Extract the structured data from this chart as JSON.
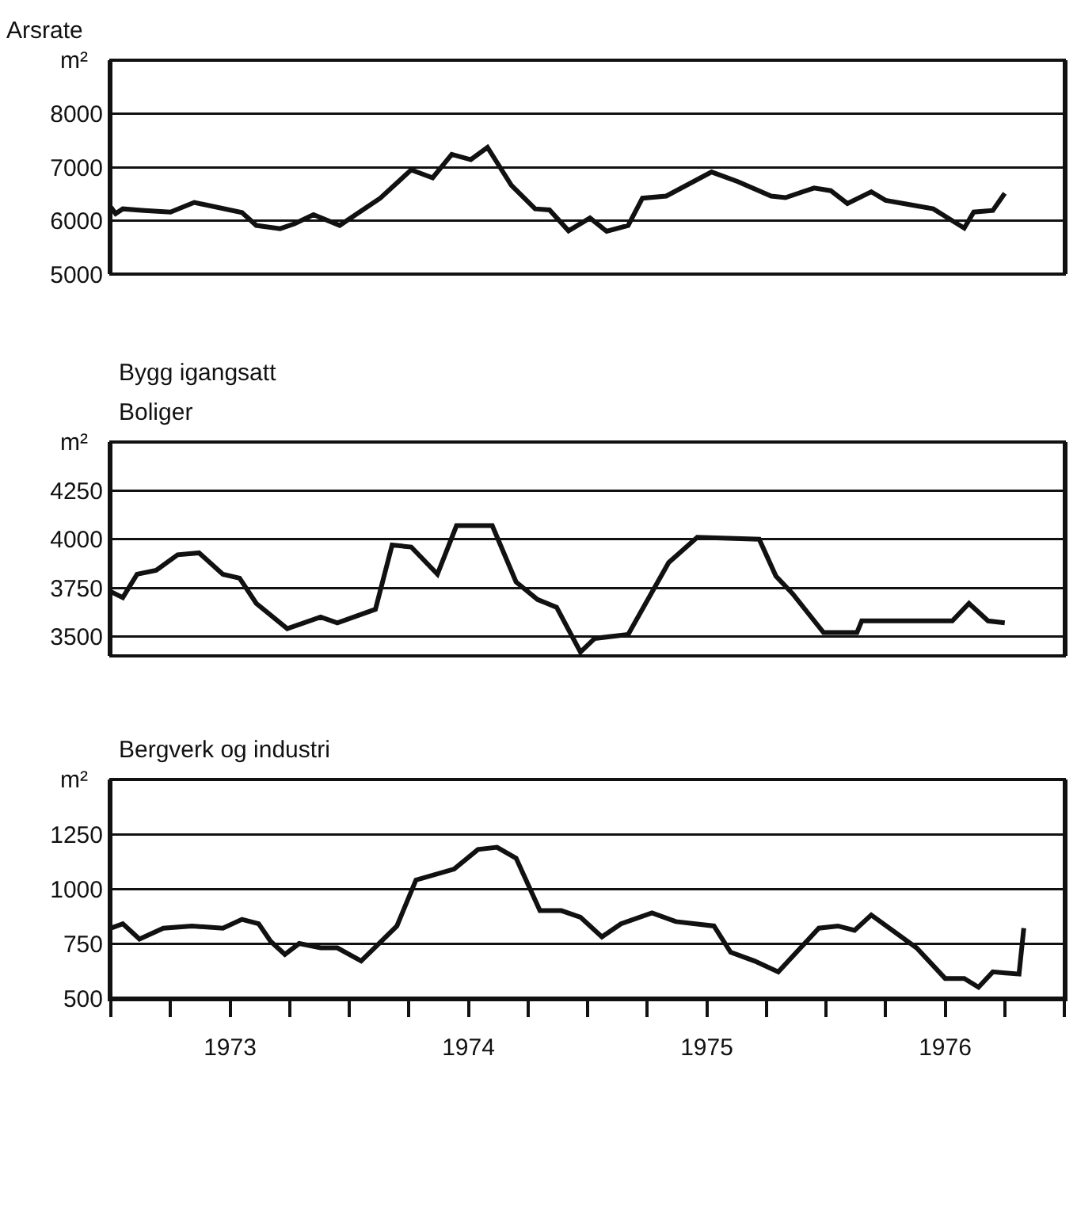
{
  "chart_data": [
    {
      "type": "line",
      "title": "Arsrate",
      "ylabel": "m²",
      "xlim": [
        1973,
        1977
      ],
      "ylim": [
        5000,
        9000
      ],
      "yticks": [
        5000,
        6000,
        7000,
        8000
      ],
      "grid": "y",
      "tick_labels": "y",
      "marker": "none",
      "line_style": "solid",
      "series": [
        {
          "color": "#111111",
          "x": [
            1973.0,
            1973.02,
            1973.05,
            1973.14,
            1973.25,
            1973.35,
            1973.55,
            1973.61,
            1973.71,
            1973.77,
            1973.85,
            1973.96,
            1974.13,
            1974.26,
            1974.35,
            1974.43,
            1974.51,
            1974.58,
            1974.68,
            1974.78,
            1974.84,
            1974.92,
            1975.01,
            1975.08,
            1975.17,
            1975.23,
            1975.33,
            1975.52,
            1975.63,
            1975.77,
            1975.83,
            1975.95,
            1976.02,
            1976.09,
            1976.19,
            1976.25,
            1976.35,
            1976.45,
            1976.58,
            1976.62,
            1976.7,
            1976.75
          ],
          "values": [
            6250,
            6130,
            6220,
            6190,
            6160,
            6340,
            6150,
            5910,
            5850,
            5940,
            6110,
            5910,
            6420,
            6950,
            6800,
            7240,
            7140,
            7370,
            6660,
            6220,
            6200,
            5810,
            6050,
            5800,
            5910,
            6420,
            6460,
            6910,
            6730,
            6460,
            6430,
            6610,
            6560,
            6320,
            6540,
            6380,
            6300,
            6220,
            5860,
            6160,
            6190,
            6510
          ]
        }
      ]
    },
    {
      "type": "line",
      "title": "Bygg igangsatt",
      "subtitle": "Boliger",
      "ylabel": "m²",
      "xlim": [
        1973,
        1977
      ],
      "ylim": [
        3400,
        4500
      ],
      "yticks": [
        3500,
        3750,
        4000,
        4250
      ],
      "grid": "y",
      "tick_labels": "y",
      "marker": "none",
      "line_style": "solid",
      "series": [
        {
          "color": "#111111",
          "x": [
            1973.0,
            1973.05,
            1973.11,
            1973.19,
            1973.28,
            1973.37,
            1973.47,
            1973.54,
            1973.61,
            1973.74,
            1973.88,
            1973.95,
            1974.11,
            1974.18,
            1974.26,
            1974.37,
            1974.45,
            1974.6,
            1974.7,
            1974.79,
            1974.87,
            1974.97,
            1975.03,
            1975.17,
            1975.34,
            1975.46,
            1975.72,
            1975.79,
            1975.86,
            1975.99,
            1976.13,
            1976.15,
            1976.29,
            1976.53,
            1976.6,
            1976.68,
            1976.75
          ],
          "values": [
            3730,
            3700,
            3820,
            3840,
            3920,
            3930,
            3820,
            3800,
            3670,
            3540,
            3600,
            3570,
            3640,
            3970,
            3960,
            3820,
            4070,
            4070,
            3780,
            3690,
            3650,
            3420,
            3490,
            3510,
            3880,
            4010,
            4000,
            3810,
            3720,
            3520,
            3520,
            3580,
            3580,
            3580,
            3670,
            3580,
            3570
          ]
        }
      ]
    },
    {
      "type": "line",
      "title": "Bergverk og industri",
      "ylabel": "m²",
      "xlim": [
        1973,
        1977
      ],
      "ylim": [
        500,
        1500
      ],
      "yticks": [
        500,
        750,
        1000,
        1250
      ],
      "grid": "y",
      "marker": "none",
      "line_style": "solid",
      "xticks": [
        {
          "value": 1973,
          "label": null
        },
        {
          "value": 1973.25,
          "label": null
        },
        {
          "value": 1973.5,
          "label": "1973"
        },
        {
          "value": 1973.75,
          "label": null
        },
        {
          "value": 1974,
          "label": null
        },
        {
          "value": 1974.25,
          "label": null
        },
        {
          "value": 1974.5,
          "label": "1974"
        },
        {
          "value": 1974.75,
          "label": null
        },
        {
          "value": 1975,
          "label": null
        },
        {
          "value": 1975.25,
          "label": null
        },
        {
          "value": 1975.5,
          "label": "1975"
        },
        {
          "value": 1975.75,
          "label": null
        },
        {
          "value": 1976,
          "label": null
        },
        {
          "value": 1976.25,
          "label": null
        },
        {
          "value": 1976.5,
          "label": "1976"
        },
        {
          "value": 1976.75,
          "label": null
        },
        {
          "value": 1977,
          "label": null
        }
      ],
      "series": [
        {
          "color": "#111111",
          "x": [
            1973.0,
            1973.05,
            1973.12,
            1973.22,
            1973.34,
            1973.47,
            1973.55,
            1973.62,
            1973.67,
            1973.73,
            1973.79,
            1973.88,
            1973.95,
            1974.05,
            1974.2,
            1974.28,
            1974.44,
            1974.54,
            1974.62,
            1974.7,
            1974.8,
            1974.89,
            1974.97,
            1975.06,
            1975.14,
            1975.27,
            1975.37,
            1975.53,
            1975.6,
            1975.7,
            1975.8,
            1975.97,
            1976.05,
            1976.12,
            1976.19,
            1976.38,
            1976.5,
            1976.58,
            1976.64,
            1976.7,
            1976.81,
            1976.83
          ],
          "values": [
            820,
            840,
            770,
            820,
            830,
            820,
            860,
            840,
            760,
            700,
            750,
            730,
            730,
            670,
            830,
            1040,
            1090,
            1180,
            1190,
            1140,
            900,
            900,
            870,
            780,
            840,
            890,
            850,
            830,
            710,
            670,
            620,
            820,
            830,
            810,
            880,
            730,
            590,
            590,
            550,
            620,
            610,
            820
          ]
        }
      ]
    }
  ]
}
